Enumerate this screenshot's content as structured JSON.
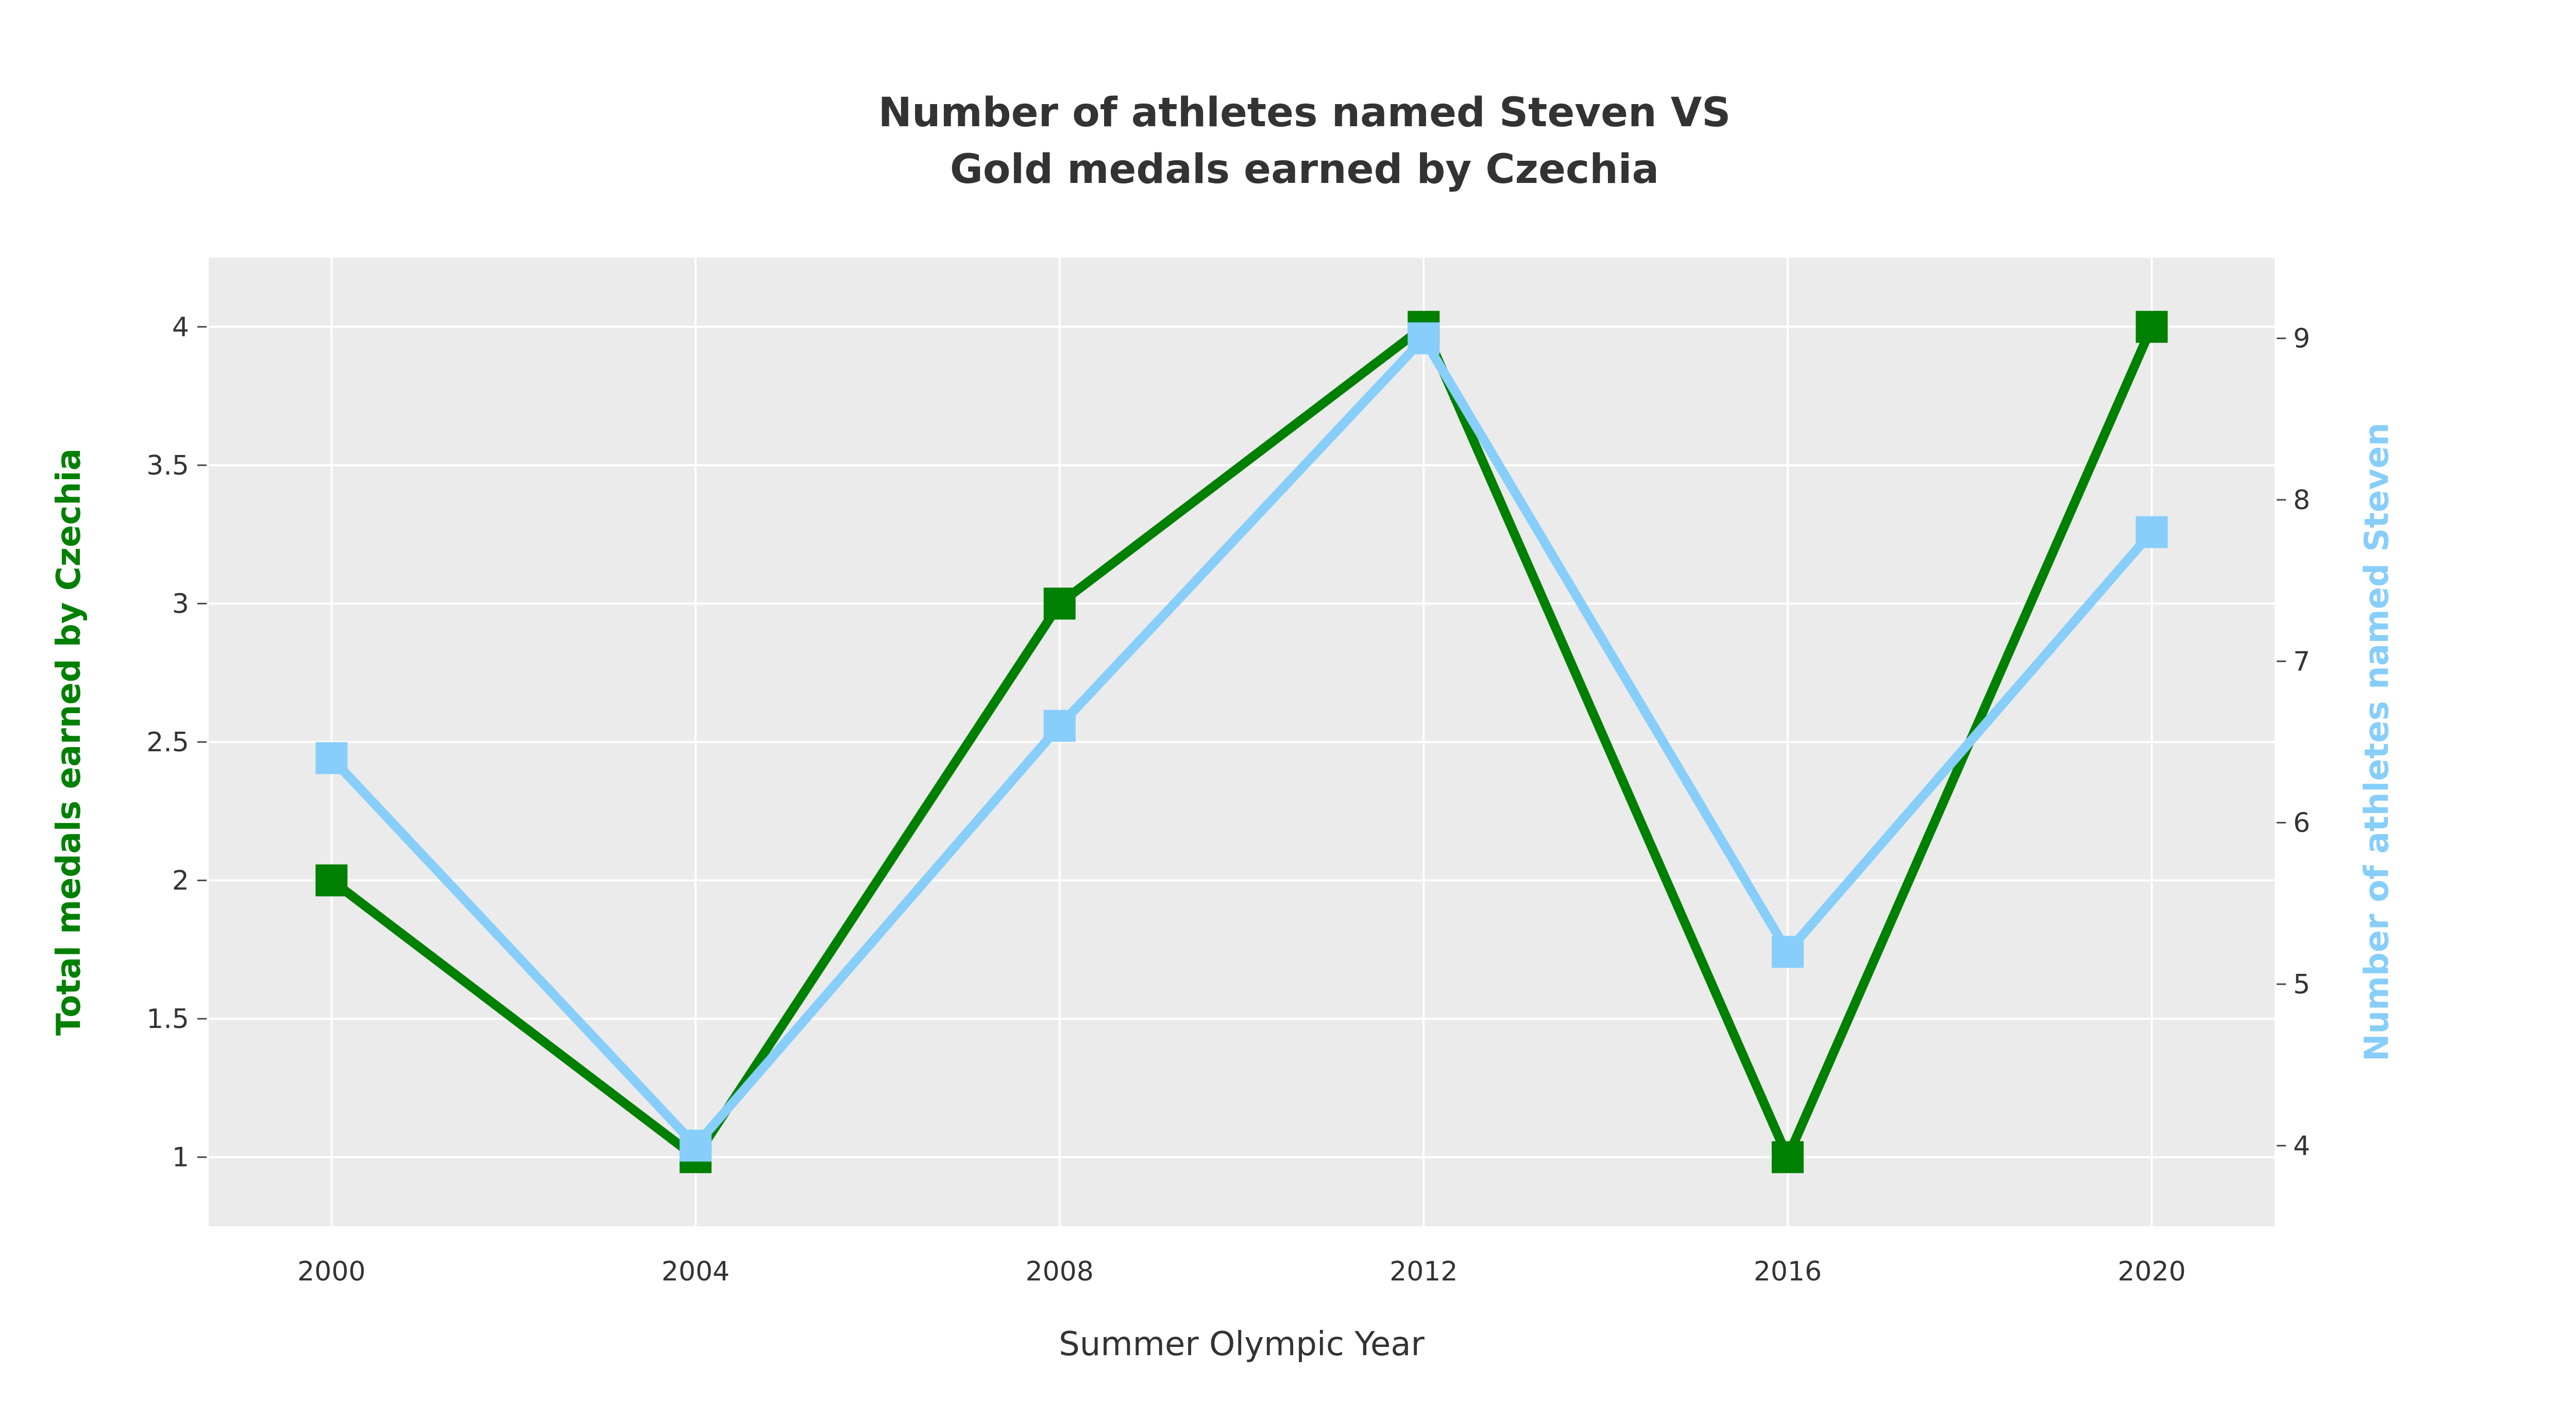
{
  "chart_data": {
    "type": "line",
    "title_line1": "Number of athletes named Steven VS",
    "title_line2": "Gold medals earned by Czechia",
    "xlabel": "Summer Olympic Year",
    "ylabel_left": "Total medals earned by Czechia",
    "ylabel_right": "Number of athletes named Steven",
    "x": [
      2000,
      2004,
      2008,
      2012,
      2016,
      2020
    ],
    "x_ticks": [
      "2000",
      "2004",
      "2008",
      "2012",
      "2016",
      "2020"
    ],
    "xlim": [
      1998.65,
      2021.35
    ],
    "y_left_ticks": [
      "1",
      "1.5",
      "2",
      "2.5",
      "3",
      "3.5",
      "4"
    ],
    "y_left_lim": [
      0.75,
      4.25
    ],
    "y_right_ticks": [
      "4",
      "5",
      "6",
      "7",
      "8",
      "9"
    ],
    "y_right_lim": [
      3.5,
      9.5
    ],
    "grid": true,
    "series": [
      {
        "axis": "left",
        "color": "#008000",
        "marker": "square",
        "values": [
          2,
          1,
          3,
          4,
          1,
          4
        ]
      },
      {
        "axis": "right",
        "color": "#87CEFA",
        "marker": "square",
        "values": [
          6.4,
          4,
          6.6,
          9,
          5.2,
          7.8
        ]
      }
    ],
    "colors": {
      "plot_background": "#ebebeb",
      "grid": "#ffffff",
      "left_axis_title": "#008000",
      "right_axis_title": "#87CEFA"
    }
  }
}
